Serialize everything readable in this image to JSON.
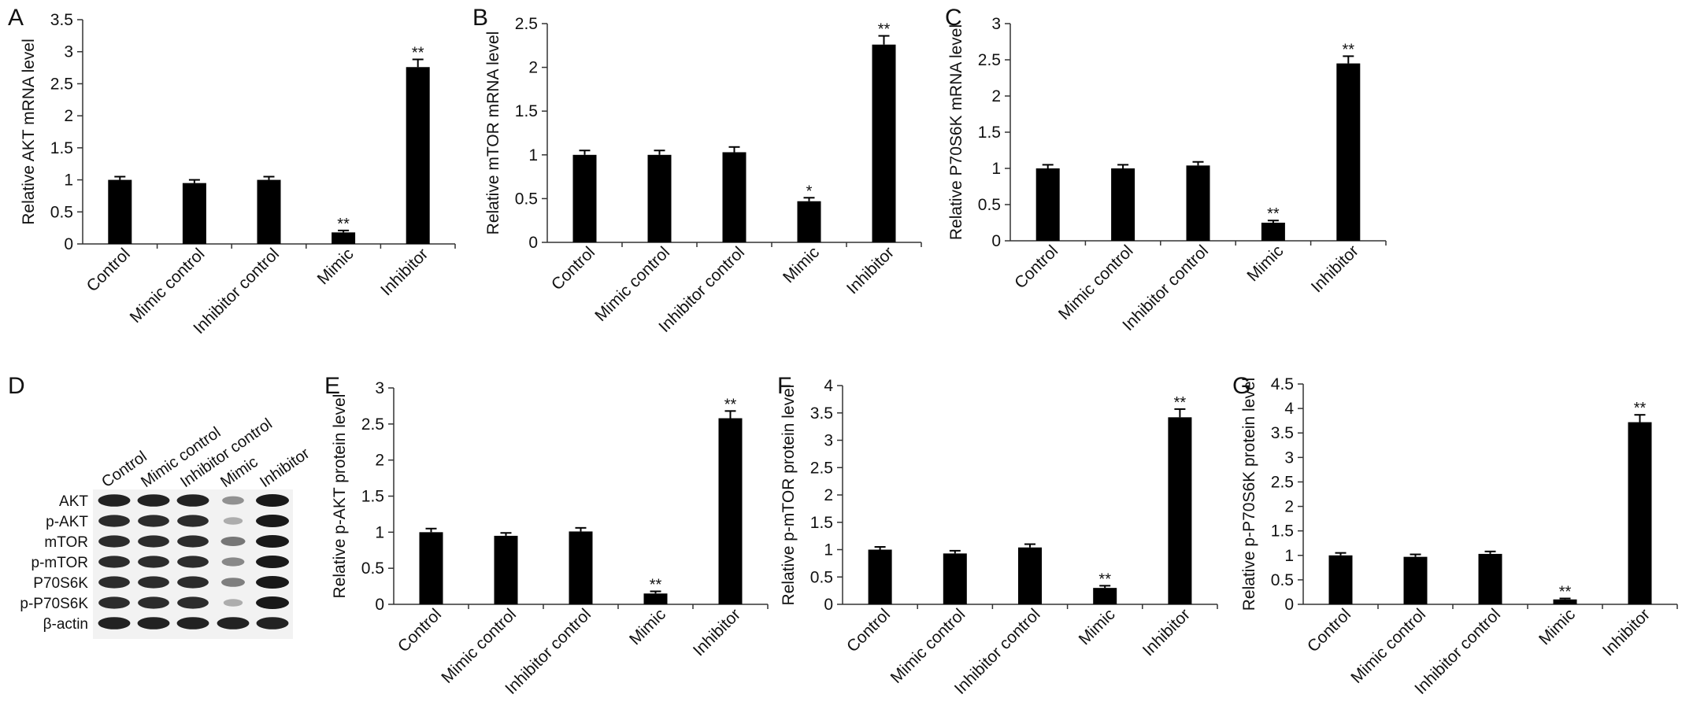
{
  "chart_data": [
    {
      "panel": "A",
      "type": "bar",
      "ylabel": "Relative AKT mRNA level",
      "categories": [
        "Control",
        "Mimic control",
        "Inhibitor control",
        "Mimic",
        "Inhibitor"
      ],
      "values": [
        1.0,
        0.95,
        1.0,
        0.18,
        2.76
      ],
      "errors": [
        0.05,
        0.05,
        0.05,
        0.03,
        0.12
      ],
      "sig": [
        "",
        "",
        "",
        "**",
        "**"
      ],
      "ylim": [
        0,
        3.5
      ],
      "yticks": [
        "0",
        "0.5",
        "1",
        "1.5",
        "2",
        "2.5",
        "3",
        "3.5"
      ]
    },
    {
      "panel": "B",
      "type": "bar",
      "ylabel": "Relative mTOR mRNA level",
      "categories": [
        "Control",
        "Mimic control",
        "Inhibitor control",
        "Mimic",
        "Inhibitor"
      ],
      "values": [
        1.0,
        1.0,
        1.03,
        0.47,
        2.26
      ],
      "errors": [
        0.05,
        0.05,
        0.06,
        0.04,
        0.1
      ],
      "sig": [
        "",
        "",
        "",
        "*",
        "**"
      ],
      "ylim": [
        0,
        2.5
      ],
      "yticks": [
        "0",
        "0.5",
        "1",
        "1.5",
        "2",
        "2.5"
      ]
    },
    {
      "panel": "C",
      "type": "bar",
      "ylabel": "Relative P70S6K mRNA level",
      "categories": [
        "Control",
        "Mimic control",
        "Inhibitor control",
        "Mimic",
        "Inhibitor"
      ],
      "values": [
        1.0,
        1.0,
        1.04,
        0.25,
        2.45
      ],
      "errors": [
        0.05,
        0.05,
        0.05,
        0.03,
        0.1
      ],
      "sig": [
        "",
        "",
        "",
        "**",
        "**"
      ],
      "ylim": [
        0,
        3
      ],
      "yticks": [
        "0",
        "0.5",
        "1",
        "1.5",
        "2",
        "2.5",
        "3"
      ]
    },
    {
      "panel": "E",
      "type": "bar",
      "ylabel": "Relative p-AKT protein level",
      "categories": [
        "Control",
        "Mimic control",
        "Inhibitor control",
        "Mimic",
        "Inhibitor"
      ],
      "values": [
        1.0,
        0.95,
        1.01,
        0.15,
        2.58
      ],
      "errors": [
        0.05,
        0.04,
        0.05,
        0.03,
        0.1
      ],
      "sig": [
        "",
        "",
        "",
        "**",
        "**"
      ],
      "ylim": [
        0,
        3
      ],
      "yticks": [
        "0",
        "0.5",
        "1",
        "1.5",
        "2",
        "2.5",
        "3"
      ]
    },
    {
      "panel": "F",
      "type": "bar",
      "ylabel": "Relative p-mTOR protein level",
      "categories": [
        "Control",
        "Mimic control",
        "Inhibitor control",
        "Mimic",
        "Inhibitor"
      ],
      "values": [
        1.0,
        0.93,
        1.04,
        0.3,
        3.42
      ],
      "errors": [
        0.05,
        0.05,
        0.06,
        0.04,
        0.15
      ],
      "sig": [
        "",
        "",
        "",
        "**",
        "**"
      ],
      "ylim": [
        0,
        4
      ],
      "yticks": [
        "0",
        "0.5",
        "1",
        "1.5",
        "2",
        "2.5",
        "3",
        "3.5",
        "4"
      ]
    },
    {
      "panel": "G",
      "type": "bar",
      "ylabel": "Relative p-P70S6K protein level",
      "categories": [
        "Control",
        "Mimic control",
        "Inhibitor control",
        "Mimic",
        "Inhibitor"
      ],
      "values": [
        1.0,
        0.97,
        1.03,
        0.1,
        3.72
      ],
      "errors": [
        0.05,
        0.05,
        0.05,
        0.02,
        0.15
      ],
      "sig": [
        "",
        "",
        "",
        "**",
        "**"
      ],
      "ylim": [
        0,
        4.5
      ],
      "yticks": [
        "0",
        "0.5",
        "1",
        "1.5",
        "2",
        "2.5",
        "3",
        "3.5",
        "4",
        "4.5"
      ]
    }
  ],
  "blot": {
    "panel": "D",
    "lanes": [
      "Control",
      "Mimic control",
      "Inhibitor control",
      "Mimic",
      "Inhibitor"
    ],
    "rows": [
      {
        "label": "AKT",
        "intensities": [
          0.95,
          0.95,
          0.95,
          0.35,
          1.0
        ]
      },
      {
        "label": "p-AKT",
        "intensities": [
          0.9,
          0.9,
          0.9,
          0.2,
          1.0
        ]
      },
      {
        "label": "mTOR",
        "intensities": [
          0.9,
          0.9,
          0.9,
          0.5,
          1.0
        ]
      },
      {
        "label": "p-mTOR",
        "intensities": [
          0.9,
          0.9,
          0.9,
          0.4,
          1.0
        ]
      },
      {
        "label": "P70S6K",
        "intensities": [
          0.9,
          0.9,
          0.9,
          0.45,
          1.0
        ]
      },
      {
        "label": "p-P70S6K",
        "intensities": [
          0.9,
          0.9,
          0.9,
          0.2,
          1.0
        ]
      },
      {
        "label": "β-actin",
        "intensities": [
          0.95,
          0.95,
          0.95,
          0.95,
          0.95
        ]
      }
    ]
  },
  "colors": {
    "bar": "#000000",
    "axis": "#333333",
    "text": "#111111"
  }
}
